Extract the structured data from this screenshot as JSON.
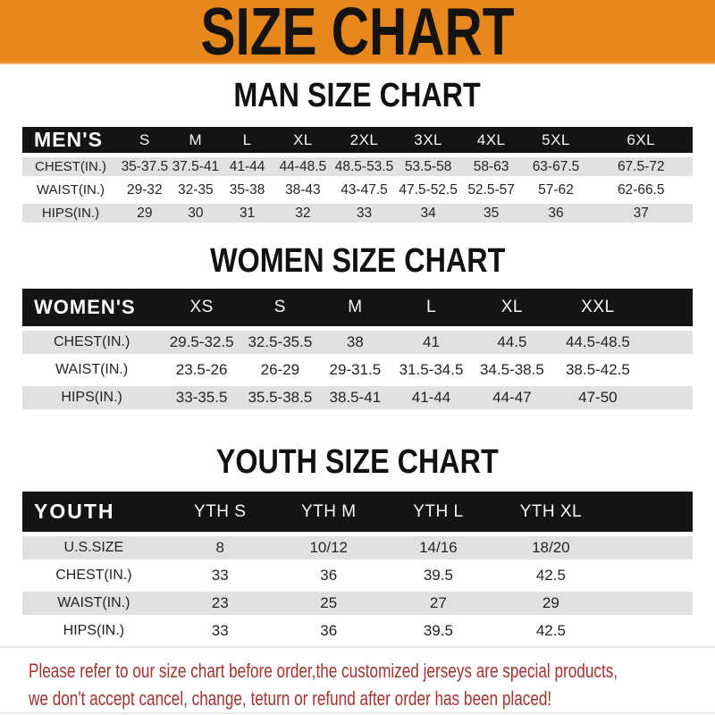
{
  "banner": {
    "title": "SIZE CHART"
  },
  "colors": {
    "banner_bg": "#E8871C",
    "header_bar": "#141414",
    "row_shade": "#E1E1E1",
    "notice_red": "#A43330"
  },
  "sections": [
    {
      "id": "men",
      "heading": "MAN SIZE CHART",
      "corner_label": "MEN'S",
      "columns": [
        "S",
        "M",
        "L",
        "XL",
        "2XL",
        "3XL",
        "4XL",
        "5XL",
        "6XL"
      ],
      "rows": [
        {
          "label": "CHEST(IN.)",
          "values": [
            "35-37.5",
            "37.5-41",
            "41-44",
            "44-48.5",
            "48.5-53.5",
            "53.5-58",
            "58-63",
            "63-67.5",
            "67.5-72"
          ]
        },
        {
          "label": "WAIST(IN.)",
          "values": [
            "29-32",
            "32-35",
            "35-38",
            "38-43",
            "43-47.5",
            "47.5-52.5",
            "52.5-57",
            "57-62",
            "62-66.5"
          ]
        },
        {
          "label": "HIPS(IN.)",
          "values": [
            "29",
            "30",
            "31",
            "32",
            "33",
            "34",
            "35",
            "36",
            "37"
          ]
        }
      ]
    },
    {
      "id": "women",
      "heading": "WOMEN SIZE CHART",
      "corner_label": "WOMEN'S",
      "columns": [
        "XS",
        "S",
        "M",
        "L",
        "XL",
        "XXL"
      ],
      "rows": [
        {
          "label": "CHEST(IN.)",
          "values": [
            "29.5-32.5",
            "32.5-35.5",
            "38",
            "41",
            "44.5",
            "44.5-48.5"
          ]
        },
        {
          "label": "WAIST(IN.)",
          "values": [
            "23.5-26",
            "26-29",
            "29-31.5",
            "31.5-34.5",
            "34.5-38.5",
            "38.5-42.5"
          ]
        },
        {
          "label": "HIPS(IN.)",
          "values": [
            "33-35.5",
            "35.5-38.5",
            "38.5-41",
            "41-44",
            "44-47",
            "47-50"
          ]
        }
      ]
    },
    {
      "id": "youth",
      "heading": "YOUTH SIZE CHART",
      "corner_label": "YOUTH",
      "columns": [
        "YTH S",
        "YTH M",
        "YTH L",
        "YTH XL"
      ],
      "rows": [
        {
          "label": "U.S.SIZE",
          "values": [
            "8",
            "10/12",
            "14/16",
            "18/20"
          ]
        },
        {
          "label": "CHEST(IN.)",
          "values": [
            "33",
            "36",
            "39.5",
            "42.5"
          ]
        },
        {
          "label": "WAIST(IN.)",
          "values": [
            "23",
            "25",
            "27",
            "29"
          ]
        },
        {
          "label": "HIPS(IN.)",
          "values": [
            "33",
            "36",
            "39.5",
            "42.5"
          ]
        }
      ]
    }
  ],
  "footer": {
    "line1": "Please refer to our size chart before order,the customized jerseys are special products,",
    "line2": "we don't accept cancel, change, teturn or refund after order has been placed!"
  }
}
